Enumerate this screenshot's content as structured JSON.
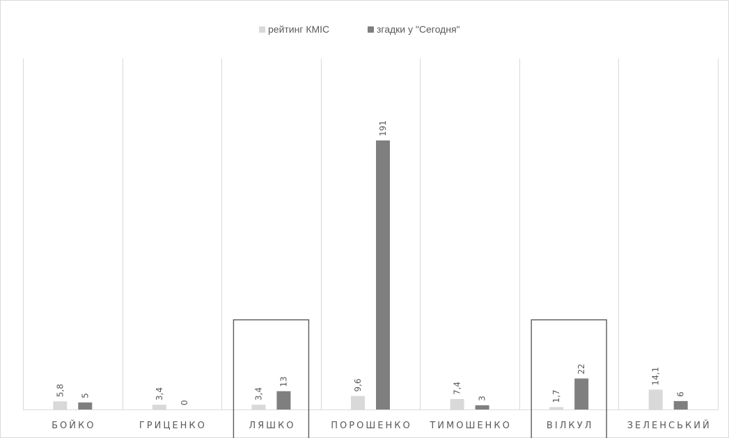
{
  "chart_data": {
    "type": "bar",
    "categories": [
      "БОЙКО",
      "ГРИЦЕНКО",
      "ЛЯШКО",
      "ПОРОШЕНКО",
      "ТИМОШЕНКО",
      "ВІЛКУЛ",
      "ЗЕЛЕНСЬКИЙ"
    ],
    "series": [
      {
        "name": "рейтинг КМІС",
        "color": "#d9d9d9",
        "values": [
          5.8,
          3.4,
          3.4,
          9.6,
          7.4,
          1.7,
          14.1
        ],
        "labels": [
          "5,8",
          "3,4",
          "3,4",
          "9,6",
          "7,4",
          "1,7",
          "14,1"
        ]
      },
      {
        "name": "згадки у \"Сегодня\"",
        "color": "#7f7f7f",
        "values": [
          5,
          0,
          13,
          191,
          3,
          22,
          6
        ],
        "labels": [
          "5",
          "0",
          "13",
          "191",
          "3",
          "22",
          "6"
        ]
      }
    ],
    "highlighted_categories": [
      "ЛЯШКО",
      "ВІЛКУЛ"
    ],
    "ylim": [
      0,
      191
    ],
    "grid": "vertical category separators",
    "legend": "top-center",
    "xlabel": "",
    "ylabel": ""
  }
}
